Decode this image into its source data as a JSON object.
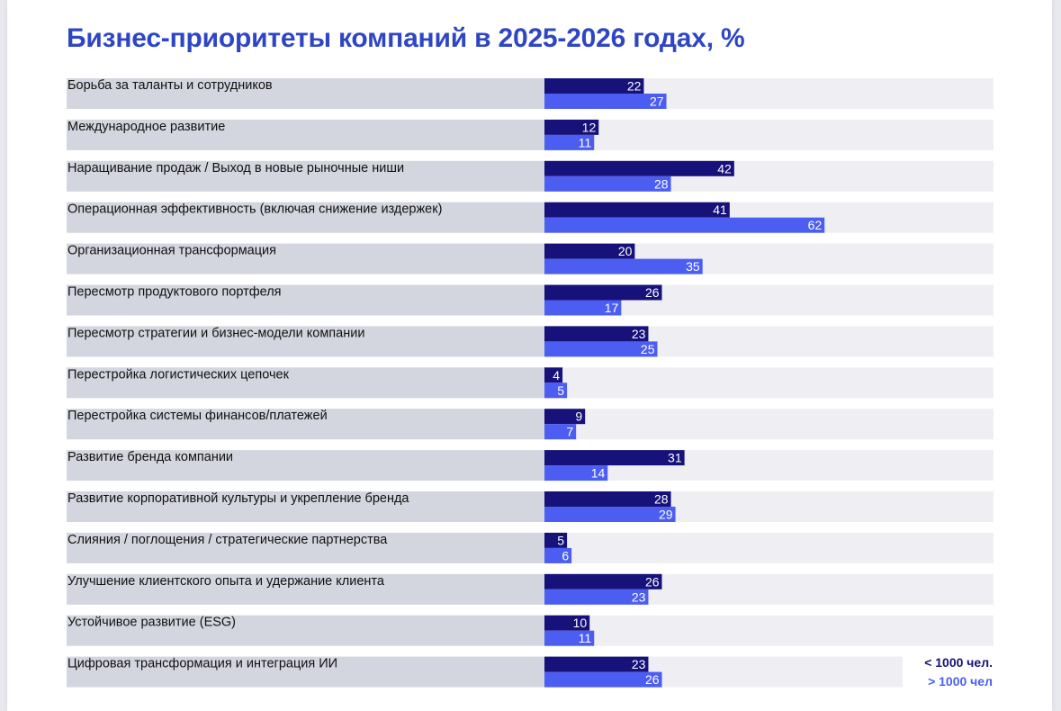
{
  "colors": {
    "title": "#2f46c4",
    "series_small": "#16127a",
    "series_large": "#4c5ef2",
    "row_label_bg": "#d4d6df",
    "row_track_bg": "#efeff3"
  },
  "chart_data": {
    "type": "bar",
    "orientation": "horizontal",
    "title": "Бизнес-приоритеты компаний в 2025-2026 годах, %",
    "categories": [
      "Борьба за таланты и сотрудников",
      "Международное развитие",
      "Наращивание продаж / Выход в новые рыночные ниши",
      "Операционная эффективность (включая снижение издержек)",
      "Организационная трансформация",
      "Пересмотр продуктового портфеля",
      "Пересмотр стратегии и бизнес-модели компании",
      "Перестройка логистических цепочек",
      "Перестройка системы финансов/платежей",
      "Развитие бренда компании",
      "Развитие корпоративной культуры и укрепление бренда",
      "Слияния / поглощения / стратегические партнерства",
      "Улучшение клиентского опыта и удержание клиента",
      "Устойчивое развитие (ESG)",
      "Цифровая трансформация и интеграция ИИ"
    ],
    "series": [
      {
        "name": "< 1000 чел.",
        "values": [
          22,
          12,
          42,
          41,
          20,
          26,
          23,
          4,
          9,
          31,
          28,
          5,
          26,
          10,
          23
        ]
      },
      {
        "name": "> 1000 чел",
        "values": [
          27,
          11,
          28,
          62,
          35,
          17,
          25,
          5,
          7,
          14,
          29,
          6,
          23,
          11,
          26
        ]
      }
    ],
    "xlim": [
      0,
      100
    ],
    "legend_position": "bottom-right",
    "grid": false
  }
}
